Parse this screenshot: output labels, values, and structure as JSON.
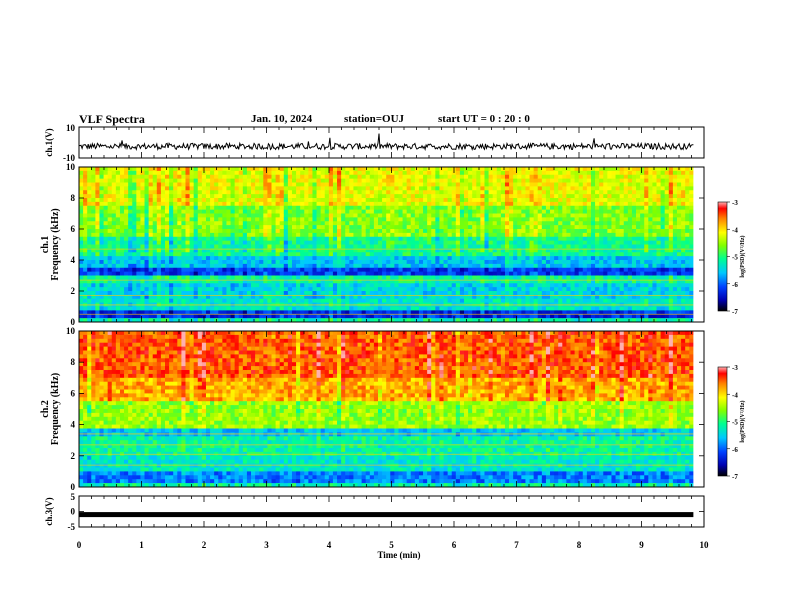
{
  "header": {
    "title": "VLF Spectra",
    "date": "Jan. 10, 2024",
    "station": "station=OUJ",
    "start": "start UT =  0 : 20 : 0"
  },
  "chart_data": {
    "type": "heatmap",
    "title": "VLF Spectra",
    "panels": [
      {
        "id": "ch1-waveform",
        "type": "line",
        "ylabel": "ch.1(V)",
        "ylim": [
          -10,
          10
        ],
        "yticks": [
          "10",
          "-10"
        ],
        "baseline": -2.5,
        "data_xmax": 9.83
      },
      {
        "id": "ch1-spectrogram",
        "type": "heatmap",
        "ylabel_top": "ch.1",
        "ylabel": "Frequency (kHz)",
        "ylim": [
          0,
          10
        ],
        "yticks": [
          "0",
          "2",
          "4",
          "6",
          "8",
          "10"
        ],
        "data_xmax": 9.83
      },
      {
        "id": "ch2-spectrogram",
        "type": "heatmap",
        "ylabel_top": "ch.2",
        "ylabel": "Frequency (kHz)",
        "ylim": [
          0,
          10
        ],
        "yticks": [
          "0",
          "2",
          "4",
          "6",
          "8",
          "10"
        ],
        "data_xmax": 9.83
      },
      {
        "id": "ch3-waveform",
        "type": "line",
        "ylabel": "ch.3(V)",
        "ylim": [
          -5,
          5
        ],
        "yticks": [
          "5",
          "0",
          "-5"
        ],
        "baseline": -1.0,
        "data_xmax": 9.83
      }
    ],
    "xlabel": "Time (min)",
    "xlim": [
      0,
      10
    ],
    "xticks": [
      "0",
      "1",
      "2",
      "3",
      "4",
      "5",
      "6",
      "7",
      "8",
      "9",
      "10"
    ],
    "colorbar": {
      "label": "log(PSD)(V²/Hz)",
      "range": [
        -7,
        -3
      ],
      "ticks": [
        "-3",
        "-4",
        "-5",
        "-6",
        "-7"
      ]
    }
  }
}
